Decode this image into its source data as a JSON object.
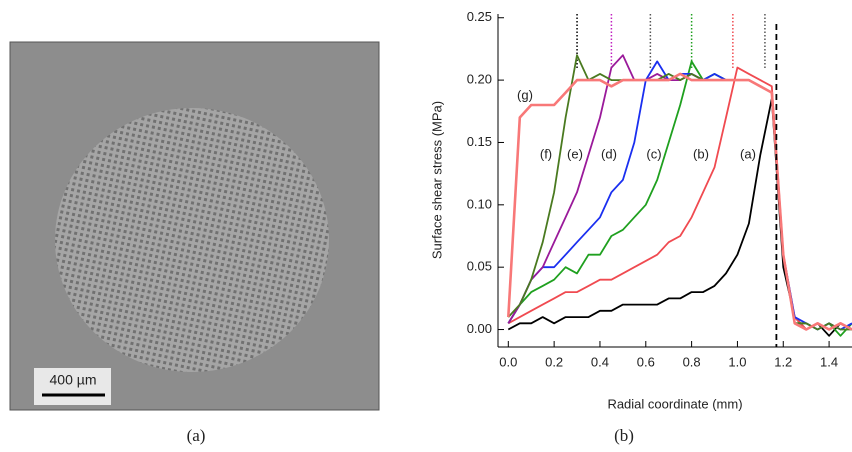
{
  "figure": {
    "panel_a_label": "(a)",
    "scale_bar": "400 µm",
    "panel_b_label": "(b)"
  },
  "chart_data": {
    "type": "line",
    "xlabel": "Radial coordinate (mm)",
    "ylabel": "Surface shear stress (MPa)",
    "x": [
      0,
      0.05,
      0.1,
      0.15,
      0.2,
      0.25,
      0.3,
      0.35,
      0.4,
      0.45,
      0.5,
      0.55,
      0.6,
      0.65,
      0.7,
      0.75,
      0.8,
      0.85,
      0.9,
      0.95,
      1.0,
      1.05,
      1.1,
      1.15,
      1.2,
      1.25,
      1.3,
      1.35,
      1.4,
      1.45,
      1.5
    ],
    "series": [
      {
        "name": "(a)",
        "color": "#000000",
        "values": [
          0,
          0.005,
          0.005,
          0.01,
          0.005,
          0.01,
          0.01,
          0.01,
          0.015,
          0.015,
          0.02,
          0.02,
          0.02,
          0.02,
          0.025,
          0.025,
          0.03,
          0.03,
          0.035,
          0.045,
          0.06,
          0.085,
          0.14,
          0.185,
          0.05,
          0.01,
          0,
          0.005,
          -0.005,
          0.005,
          0
        ]
      },
      {
        "name": "(b)",
        "color": "#f04a50",
        "values": [
          0.005,
          0.01,
          0.015,
          0.02,
          0.025,
          0.03,
          0.03,
          0.035,
          0.04,
          0.04,
          0.045,
          0.05,
          0.055,
          0.06,
          0.07,
          0.075,
          0.09,
          0.11,
          0.13,
          0.17,
          0.21,
          0.205,
          0.2,
          0.195,
          0.06,
          0.01,
          0,
          0.005,
          0,
          0.005,
          0
        ]
      },
      {
        "name": "(c)",
        "color": "#1fa01f",
        "values": [
          0.005,
          0.02,
          0.03,
          0.035,
          0.04,
          0.05,
          0.045,
          0.06,
          0.06,
          0.075,
          0.08,
          0.09,
          0.1,
          0.12,
          0.15,
          0.18,
          0.215,
          0.2,
          0.205,
          0.2,
          0.2,
          0.2,
          0.195,
          0.19,
          0.06,
          0.005,
          0.005,
          0,
          0.005,
          -0.005,
          0.005
        ]
      },
      {
        "name": "(d)",
        "color": "#1a2ff0",
        "values": [
          0.005,
          0.02,
          0.04,
          0.05,
          0.05,
          0.06,
          0.07,
          0.08,
          0.09,
          0.11,
          0.12,
          0.15,
          0.2,
          0.215,
          0.2,
          0.205,
          0.205,
          0.2,
          0.205,
          0.2,
          0.2,
          0.2,
          0.195,
          0.19,
          0.06,
          0.01,
          0.005,
          0,
          0.005,
          0,
          0.005
        ]
      },
      {
        "name": "(e)",
        "color": "#9a1a9a",
        "values": [
          0.005,
          0.02,
          0.04,
          0.05,
          0.07,
          0.09,
          0.11,
          0.14,
          0.17,
          0.21,
          0.22,
          0.2,
          0.2,
          0.205,
          0.2,
          0.2,
          0.205,
          0.2,
          0.2,
          0.2,
          0.2,
          0.2,
          0.195,
          0.19,
          0.06,
          0.005,
          0,
          0.005,
          0,
          0.005,
          0
        ]
      },
      {
        "name": "(f)",
        "color": "#4a7a20",
        "values": [
          0.01,
          0.02,
          0.04,
          0.07,
          0.11,
          0.17,
          0.22,
          0.2,
          0.205,
          0.2,
          0.2,
          0.2,
          0.2,
          0.2,
          0.205,
          0.2,
          0.205,
          0.2,
          0.2,
          0.2,
          0.2,
          0.2,
          0.195,
          0.19,
          0.06,
          0.005,
          0.005,
          0,
          0.005,
          0,
          0
        ]
      },
      {
        "name": "(g)",
        "color": "#f87878",
        "values": [
          0.01,
          0.17,
          0.18,
          0.18,
          0.18,
          0.19,
          0.2,
          0.2,
          0.2,
          0.195,
          0.2,
          0.2,
          0.2,
          0.2,
          0.2,
          0.205,
          0.2,
          0.2,
          0.2,
          0.2,
          0.2,
          0.2,
          0.195,
          0.19,
          0.06,
          0.005,
          0,
          0.005,
          0,
          0.005,
          0
        ]
      }
    ],
    "front_lines": [
      {
        "x": 0.3,
        "color": "#000000"
      },
      {
        "x": 0.45,
        "color": "#c020c0"
      },
      {
        "x": 0.62,
        "color": "#555555"
      },
      {
        "x": 0.8,
        "color": "#1fa01f"
      },
      {
        "x": 0.98,
        "color": "#f04a50"
      },
      {
        "x": 1.12,
        "color": "#555555"
      }
    ],
    "edge_line": 1.17,
    "xlim": [
      -0.045,
      1.5
    ],
    "ylim": [
      -0.014,
      0.253
    ],
    "xticks": [
      {
        "value": 0,
        "label": "0.0"
      },
      0.2,
      0.4,
      0.6,
      0.8,
      {
        "value": 1,
        "label": "1.0"
      },
      1.2,
      1.4
    ],
    "yticks": [
      {
        "value": 0,
        "label": "0.00"
      },
      0.05,
      {
        "value": 0.1,
        "label": "0.10"
      },
      0.15,
      {
        "value": 0.2,
        "label": "0.20"
      },
      0.25
    ]
  }
}
